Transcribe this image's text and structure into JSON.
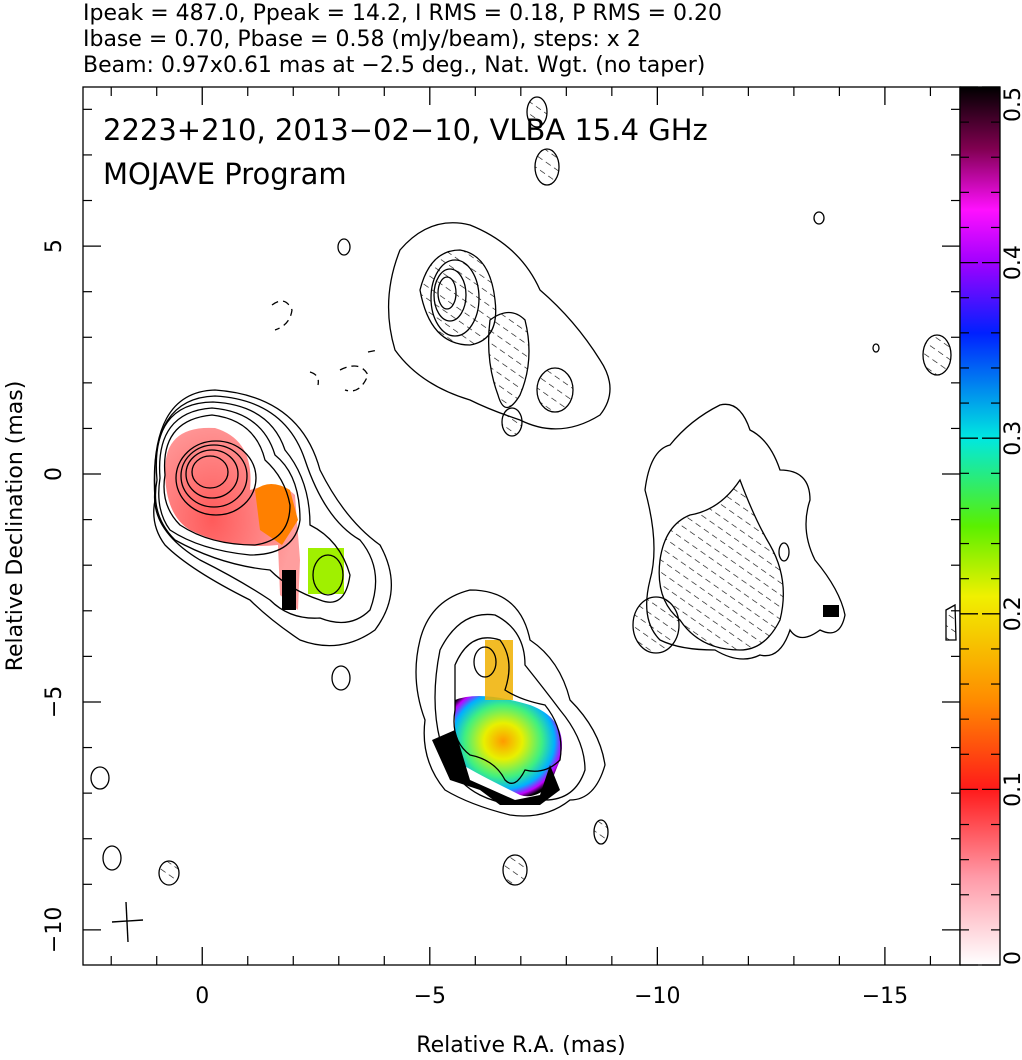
{
  "chart_data": {
    "type": "image",
    "header": [
      "Ipeak = 487.0, Ppeak = 14.2, I RMS = 0.18, P RMS = 0.20",
      "Ibase = 0.70, Pbase = 0.58 (mJy/beam), steps: x 2",
      "Beam: 0.97x0.61 mas at −2.5 deg., Nat. Wgt. (no taper)"
    ],
    "annotations": [
      "2223+210, 2013−02−10, VLBA 15.4 GHz",
      "MOJAVE Program"
    ],
    "x_label": "Relative R.A. (mas)",
    "y_label": "Relative Declination (mas)",
    "xlim": [
      2.62,
      -16.65
    ],
    "xticks": [
      0,
      {
        "value": -5,
        "label": "−5"
      },
      {
        "value": -10,
        "label": "−10"
      },
      {
        "value": -15,
        "label": "−15"
      }
    ],
    "ylim": [
      -10.77,
      8.49
    ],
    "yticks": [
      5,
      0,
      {
        "value": -5,
        "label": "−5"
      },
      {
        "value": -10,
        "label": "−10"
      }
    ],
    "colorbar_lim": [
      0,
      0.5
    ],
    "colorbar_ticks": [
      0,
      0.1,
      0.2,
      0.3,
      0.4,
      0.5
    ]
  }
}
